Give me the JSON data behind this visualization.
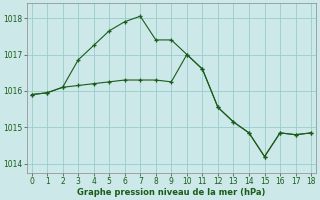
{
  "xlabel": "Graphe pression niveau de la mer (hPa)",
  "bg_color": "#cce8e8",
  "grid_color": "#99cccc",
  "line_color": "#1a5c1a",
  "marker": "+",
  "line1_x": [
    0,
    1,
    2,
    3,
    4,
    5,
    6,
    7,
    8,
    9,
    10,
    11,
    12,
    13,
    14,
    15,
    16,
    17,
    18
  ],
  "line1_y": [
    1015.9,
    1015.95,
    1016.1,
    1016.85,
    1017.25,
    1017.65,
    1017.9,
    1018.05,
    1017.4,
    1017.4,
    1017.0,
    1016.6,
    1015.55,
    1015.15,
    1014.85,
    1014.2,
    1014.85,
    1014.8,
    1014.85
  ],
  "line2_x": [
    0,
    1,
    2,
    3,
    4,
    5,
    6,
    7,
    8,
    9,
    10,
    11,
    12,
    13,
    14,
    15,
    16,
    17,
    18
  ],
  "line2_y": [
    1015.9,
    1015.95,
    1016.1,
    1016.15,
    1016.2,
    1016.25,
    1016.3,
    1016.3,
    1016.3,
    1016.25,
    1017.0,
    1016.6,
    1015.55,
    1015.15,
    1014.85,
    1014.2,
    1014.85,
    1014.8,
    1014.85
  ],
  "ylim": [
    1013.75,
    1018.4
  ],
  "xlim": [
    -0.3,
    18.3
  ],
  "yticks": [
    1014,
    1015,
    1016,
    1017,
    1018
  ],
  "xticks": [
    0,
    1,
    2,
    3,
    4,
    5,
    6,
    7,
    8,
    9,
    10,
    11,
    12,
    13,
    14,
    15,
    16,
    17,
    18
  ]
}
